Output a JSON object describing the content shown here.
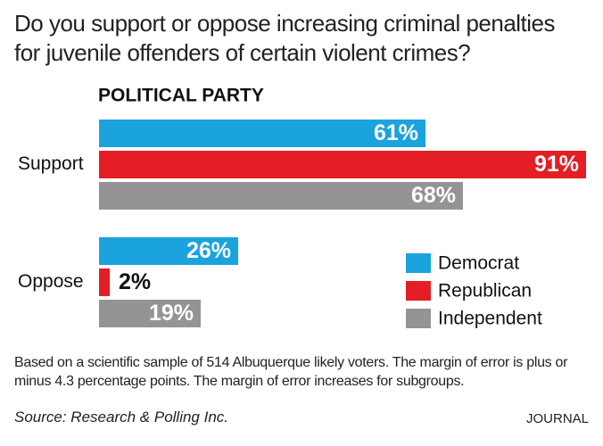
{
  "chart_data": {
    "type": "bar",
    "orientation": "horizontal",
    "title": [
      "Do you support or oppose increasing criminal penalties",
      "for juvenile offenders of certain violent crimes?"
    ],
    "subtitle": "POLITICAL PARTY",
    "categories": [
      "Support",
      "Oppose"
    ],
    "series": [
      {
        "name": "Democrat",
        "color": "#1aa3dc",
        "values": [
          61,
          26
        ],
        "value_labels": [
          "61%",
          "26%"
        ]
      },
      {
        "name": "Republican",
        "color": "#e31e24",
        "values": [
          91,
          2
        ],
        "value_labels": [
          "91%",
          "2%"
        ]
      },
      {
        "name": "Independent",
        "color": "#949494",
        "values": [
          68,
          19
        ],
        "value_labels": [
          "68%",
          "19%"
        ]
      }
    ],
    "legend": "right",
    "note": "Based on a scientific sample of 514 Albuquerque likely voters. The margin of error is plus or minus 4.3 percentage points. The margin of error increases for subgroups.",
    "source": "Source: Research & Polling Inc.",
    "publisher": "JOURNAL"
  }
}
